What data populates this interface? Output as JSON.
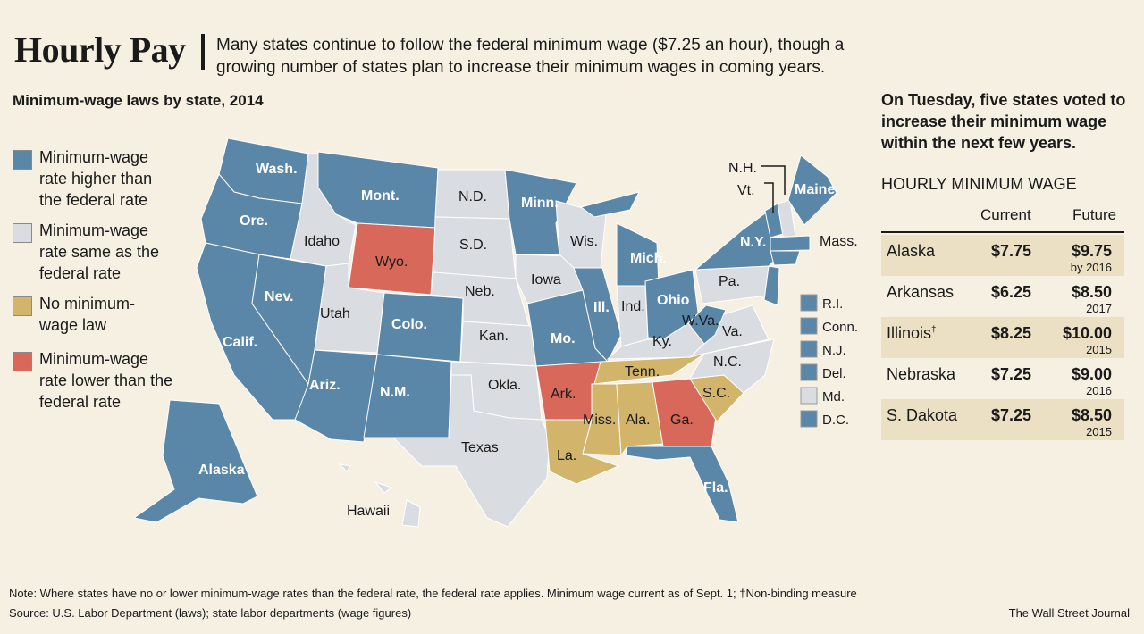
{
  "header": {
    "title": "Hourly Pay",
    "subtitle": "Many states continue to follow the federal minimum wage ($7.25 an hour), though a growing number of states plan to increase their minimum wages in coming years."
  },
  "map": {
    "title": "Minimum-wage laws by state, 2014"
  },
  "colors": {
    "higher": "#5a87a8",
    "same": "#d9dde1",
    "none": "#d2b46b",
    "lower": "#d8685a"
  },
  "legend": [
    {
      "key": "higher",
      "label": "Minimum-wage rate higher than the federal rate"
    },
    {
      "key": "same",
      "label": "Minimum-wage rate same as the federal rate"
    },
    {
      "key": "none",
      "label": "No minimum-wage law"
    },
    {
      "key": "lower",
      "label": "Minimum-wage rate lower than the federal rate"
    }
  ],
  "states": {
    "Wash.": "higher",
    "Ore.": "higher",
    "Calif.": "higher",
    "Nev.": "higher",
    "Idaho": "same",
    "Mont.": "higher",
    "Wyo.": "lower",
    "Utah": "same",
    "Colo.": "higher",
    "Ariz.": "higher",
    "N.M.": "higher",
    "N.D.": "same",
    "S.D.": "same",
    "Neb.": "same",
    "Kan.": "same",
    "Okla.": "same",
    "Texas": "same",
    "Minn.": "higher",
    "Iowa": "same",
    "Mo.": "higher",
    "Ark.": "lower",
    "La.": "none",
    "Wis.": "same",
    "Ill.": "higher",
    "Mich.": "higher",
    "Ind.": "same",
    "Ohio": "higher",
    "Ky.": "same",
    "Tenn.": "none",
    "Miss.": "none",
    "Ala.": "none",
    "Ga.": "lower",
    "Fla.": "higher",
    "S.C.": "none",
    "N.C.": "same",
    "Va.": "same",
    "W.Va.": "higher",
    "Pa.": "same",
    "N.Y.": "higher",
    "N.J.": "higher",
    "Vt.": "higher",
    "N.H.": "same",
    "Maine": "higher",
    "Mass.": "higher",
    "Alaska": "higher",
    "Hawaii": "same"
  },
  "small_states": [
    {
      "label": "R.I.",
      "key": "higher"
    },
    {
      "label": "Conn.",
      "key": "higher"
    },
    {
      "label": "N.J.",
      "key": "higher"
    },
    {
      "label": "Del.",
      "key": "higher"
    },
    {
      "label": "Md.",
      "key": "same"
    },
    {
      "label": "D.C.",
      "key": "higher"
    }
  ],
  "sidebar": {
    "vote_text": "On Tuesday, five states voted to increase their minimum wage within the next few years.",
    "table_title": "HOURLY MINIMUM WAGE",
    "col_current": "Current",
    "col_future": "Future",
    "rows": [
      {
        "state": "Alaska",
        "mark": "",
        "current": "$7.75",
        "future": "$9.75",
        "year": "by 2016"
      },
      {
        "state": "Arkansas",
        "mark": "",
        "current": "$6.25",
        "future": "$8.50",
        "year": "2017"
      },
      {
        "state": "Illinois",
        "mark": "†",
        "current": "$8.25",
        "future": "$10.00",
        "year": "2015"
      },
      {
        "state": "Nebraska",
        "mark": "",
        "current": "$7.25",
        "future": "$9.00",
        "year": "2016"
      },
      {
        "state": "S. Dakota",
        "mark": "",
        "current": "$7.25",
        "future": "$8.50",
        "year": "2015"
      }
    ]
  },
  "footer": {
    "note": "Note: Where states have no or lower minimum-wage rates than the federal rate, the federal rate applies. Minimum wage current as of Sept. 1; †Non-binding measure",
    "source": "Source: U.S. Labor Department (laws); state labor departments (wage figures)",
    "credit": "The Wall Street Journal"
  }
}
